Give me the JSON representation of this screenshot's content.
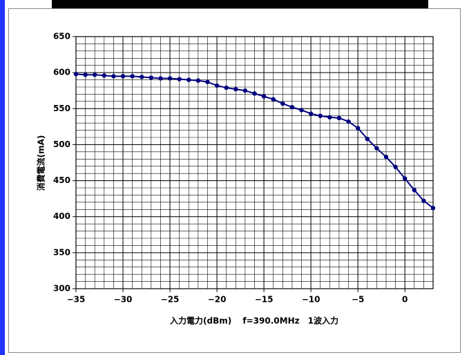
{
  "chart_data": {
    "type": "line",
    "ylabel": "消費電流(mA)",
    "xlabel": "入力電力(dBm)　 f=390.0MHz　1波入力",
    "x": [
      -35,
      -34,
      -33,
      -32,
      -31,
      -30,
      -29,
      -28,
      -27,
      -26,
      -25,
      -24,
      -23,
      -22,
      -21,
      -20,
      -19,
      -18,
      -17,
      -16,
      -15,
      -14,
      -13,
      -12,
      -11,
      -10,
      -9,
      -8,
      -7,
      -6,
      -5,
      -4,
      -3,
      -2,
      -1,
      0,
      1,
      2,
      3
    ],
    "series": [
      {
        "color": "#000080",
        "values": [
          598,
          597,
          597,
          596,
          595,
          595,
          595,
          594,
          593,
          592,
          592,
          591,
          590,
          589,
          587,
          582,
          579,
          577,
          575,
          571,
          567,
          563,
          557,
          552,
          548,
          543,
          540,
          538,
          537,
          532,
          523,
          508,
          495,
          483,
          469,
          453,
          437,
          422,
          412
        ]
      }
    ],
    "xlim": [
      -35,
      3
    ],
    "ylim": [
      300,
      650
    ],
    "xticks": [
      {
        "value": -35,
        "label": "−35"
      },
      {
        "value": -30,
        "label": "−30"
      },
      {
        "value": -25,
        "label": "−25"
      },
      {
        "value": -20,
        "label": "−20"
      },
      {
        "value": -15,
        "label": "−15"
      },
      {
        "value": -10,
        "label": "−10"
      },
      {
        "value": -5,
        "label": "−5"
      },
      0
    ],
    "yticks": [
      300,
      350,
      400,
      450,
      500,
      550,
      600,
      650
    ],
    "grid": true,
    "xminor_step": 1,
    "yminor_step": 10
  }
}
